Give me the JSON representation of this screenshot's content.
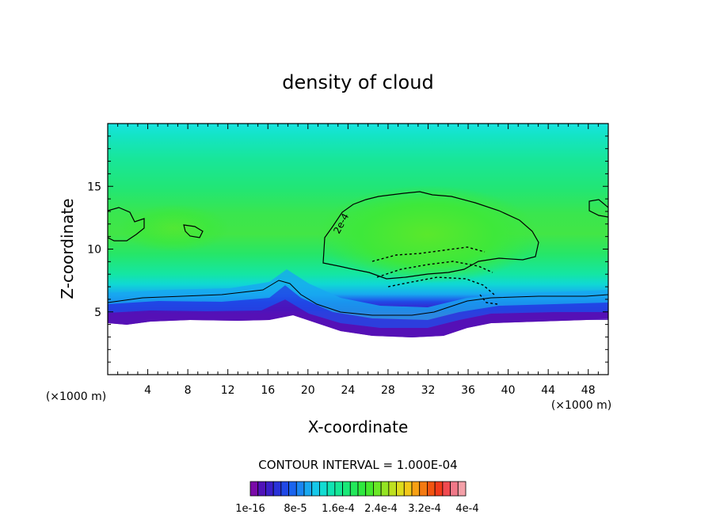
{
  "chart_data": {
    "type": "heatmap",
    "title": "density of cloud",
    "xlabel": "X-coordinate",
    "ylabel": "Z-coordinate",
    "x_unit": "(×1000 m)",
    "z_unit": "(×1000 m)",
    "xlim": [
      0,
      50
    ],
    "ylim": [
      0,
      20
    ],
    "x_ticks": [
      4,
      8,
      12,
      16,
      20,
      24,
      28,
      32,
      36,
      40,
      44,
      48
    ],
    "y_ticks": [
      5,
      10,
      15
    ],
    "contour_interval_text": "CONTOUR INTERVAL = 1.000E-04",
    "contour_label": "2e-4",
    "colorbar": {
      "colors": [
        "#7a0aa8",
        "#4f12b8",
        "#3a1ec8",
        "#2a32d8",
        "#2048e6",
        "#1a64ee",
        "#1a86f2",
        "#18a8f0",
        "#16c8ea",
        "#12dcd2",
        "#10e4b2",
        "#14e896",
        "#1ae878",
        "#22e85a",
        "#2ee83e",
        "#44e82c",
        "#6ae826",
        "#94e424",
        "#bee020",
        "#dedc1c",
        "#f2c818",
        "#f6a014",
        "#f47a12",
        "#f25410",
        "#f23a1a",
        "#f04a50",
        "#f07888",
        "#f4a0a8"
      ],
      "labels": [
        "1e-16",
        "8e-5",
        "1.6e-4",
        "2.4e-4",
        "3.2e-4",
        "4e-4"
      ]
    },
    "notes": "Filled contours of cloud density vs X and Z; white below cloud base; cloud band 4-7 km, upper cloud mass near x 21-43 km, z 7-14 km."
  }
}
